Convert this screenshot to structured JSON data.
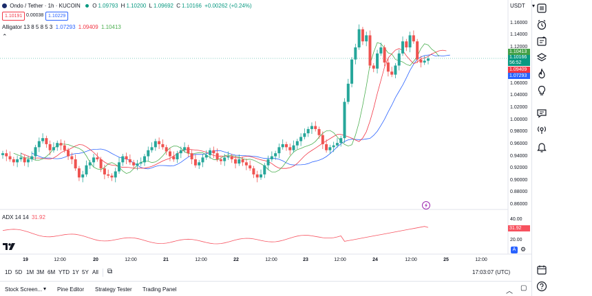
{
  "header": {
    "symbol": "Ondo / Tether · 1h · KUCOIN",
    "open_label": "O",
    "open": "1.09793",
    "high_label": "H",
    "high": "1.10200",
    "low_label": "L",
    "low": "1.09692",
    "close_label": "C",
    "close": "1.10166",
    "change": "+0.00262 (+0.24%)",
    "sell_price": "1.10191",
    "spread": "0.00038",
    "buy_price": "1.10229",
    "currency": "USDT"
  },
  "alligator": {
    "label": "Alligator 13 8 5 8 5 3",
    "jaw_value": "1.07293",
    "teeth_value": "1.09409",
    "lips_value": "1.10413"
  },
  "adx": {
    "label": "ADX 14 14",
    "value": "31.92",
    "badge": "31.92",
    "ticks": [
      "40.00",
      "20.00"
    ]
  },
  "price_axis": {
    "ticks": [
      "1.16000",
      "1.14000",
      "1.12000",
      "1.06000",
      "1.04000",
      "1.02000",
      "1.00000",
      "0.98000",
      "0.96000",
      "0.94000",
      "0.92000",
      "0.90000",
      "0.88000",
      "0.86000"
    ],
    "badge_lips": "1.10413",
    "badge_price": "1.10166",
    "badge_countdown": "56:52",
    "badge_teeth": "1.09409",
    "badge_jaw": "1.07293"
  },
  "time_axis": {
    "ticks": [
      "19",
      "12:00",
      "20",
      "12:00",
      "21",
      "12:00",
      "22",
      "12:00",
      "23",
      "12:00",
      "24",
      "12:00",
      "25",
      "12:00"
    ]
  },
  "bottom_bar": {
    "timeframes": [
      "1D",
      "5D",
      "1M",
      "3M",
      "6M",
      "YTD",
      "1Y",
      "5Y",
      "All"
    ],
    "clock": "17:03:07 (UTC)",
    "scale_auto": "A"
  },
  "footer": {
    "tabs": [
      "Stock Screen...",
      "Pine Editor",
      "Strategy Tester",
      "Trading Panel"
    ]
  },
  "colors": {
    "up": "#26a69a",
    "down": "#ef5350",
    "jaw": "#2962ff",
    "teeth": "#f23645",
    "lips": "#4caf50",
    "adx": "#f7525f",
    "price_badge": "#089981"
  },
  "chart_data": {
    "type": "candlestick",
    "title": "Ondo / Tether · 1h · KUCOIN",
    "x_range": [
      "18 12:00",
      "25 12:00"
    ],
    "ylim": [
      0.86,
      1.17
    ],
    "indicators": [
      {
        "name": "Alligator jaw",
        "last": 1.07293
      },
      {
        "name": "Alligator teeth",
        "last": 1.09409
      },
      {
        "name": "Alligator lips",
        "last": 1.10413
      },
      {
        "name": "ADX 14 14",
        "last": 31.92
      }
    ],
    "closes": [
      0.945,
      0.94,
      0.935,
      0.93,
      0.935,
      0.938,
      0.93,
      0.935,
      0.94,
      0.955,
      0.965,
      0.97,
      0.96,
      0.95,
      0.955,
      0.962,
      0.958,
      0.95,
      0.94,
      0.935,
      0.92,
      0.905,
      0.91,
      0.925,
      0.93,
      0.938,
      0.935,
      0.92,
      0.91,
      0.908,
      0.905,
      0.915,
      0.93,
      0.94,
      0.935,
      0.93,
      0.925,
      0.928,
      0.93,
      0.94,
      0.95,
      0.955,
      0.965,
      0.96,
      0.955,
      0.948,
      0.94,
      0.935,
      0.945,
      0.95,
      0.955,
      0.945,
      0.935,
      0.925,
      0.93,
      0.938,
      0.942,
      0.95,
      0.945,
      0.935,
      0.932,
      0.938,
      0.94,
      0.935,
      0.928,
      0.935,
      0.93,
      0.925,
      0.92,
      0.91,
      0.905,
      0.91,
      0.925,
      0.935,
      0.94,
      0.945,
      0.955,
      0.96,
      0.955,
      0.95,
      0.958,
      0.965,
      0.972,
      0.978,
      0.985,
      0.99,
      0.985,
      0.975,
      0.96,
      0.95,
      0.955,
      0.958,
      0.962,
      0.97,
      1.03,
      1.06,
      1.1,
      1.12,
      1.15,
      1.13,
      1.14,
      1.09,
      1.085,
      1.11,
      1.12,
      1.095,
      1.08,
      1.075,
      1.09,
      1.11,
      1.13,
      1.12,
      1.14,
      1.13,
      1.1,
      1.095,
      1.098,
      1.10166
    ]
  }
}
